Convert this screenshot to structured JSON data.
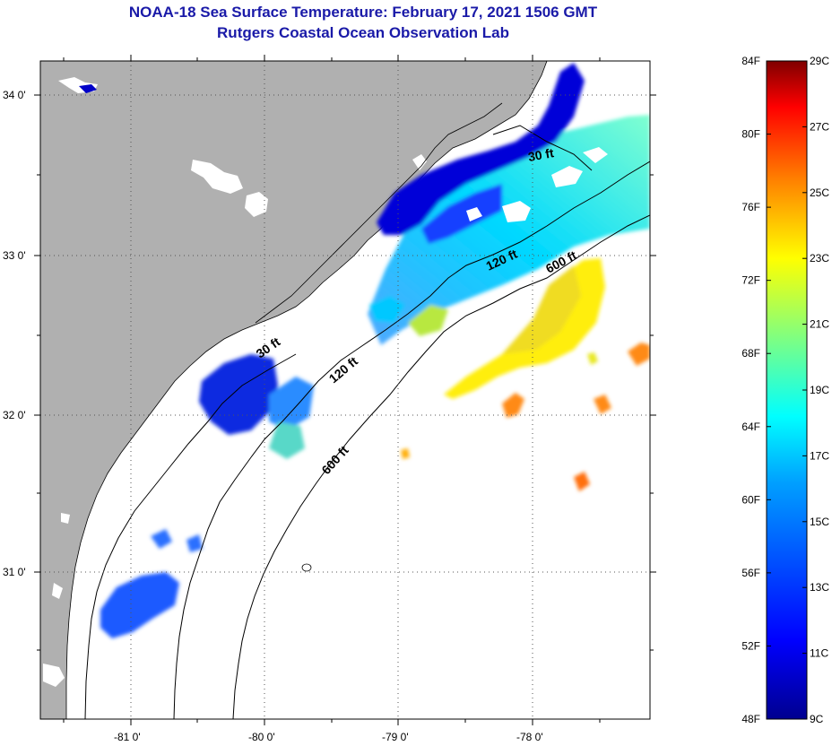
{
  "title": {
    "line1": "NOAA-18 Sea Surface Temperature:  February 17, 2021 1506 GMT",
    "line2": "Rutgers Coastal Ocean Observation Lab"
  },
  "map": {
    "lat_labels": [
      "34 0'",
      "33 0'",
      "32 0'",
      "31 0'"
    ],
    "lon_labels": [
      "-81 0'",
      "-80 0'",
      "-79 0'",
      "-78 0'"
    ],
    "contours": {
      "c30_top": "30 ft",
      "c30_mid": "30 ft",
      "c120_top": "120 ft",
      "c120_mid": "120 ft",
      "c600_top": "600 ft",
      "c600_mid": "600 ft"
    }
  },
  "colorbar": {
    "fahrenheit": [
      "84F",
      "80F",
      "76F",
      "72F",
      "68F",
      "64F",
      "60F",
      "56F",
      "52F",
      "48F"
    ],
    "celsius": [
      "29C",
      "27C",
      "25C",
      "23C",
      "21C",
      "19C",
      "17C",
      "15C",
      "13C",
      "11C",
      "9C"
    ],
    "range_f": [
      48,
      84
    ],
    "range_c": [
      9,
      29
    ],
    "colors": [
      "#7f0000",
      "#ff0000",
      "#ff8000",
      "#ffff00",
      "#80ff80",
      "#00ffff",
      "#0080ff",
      "#0000ff",
      "#00008f"
    ]
  }
}
